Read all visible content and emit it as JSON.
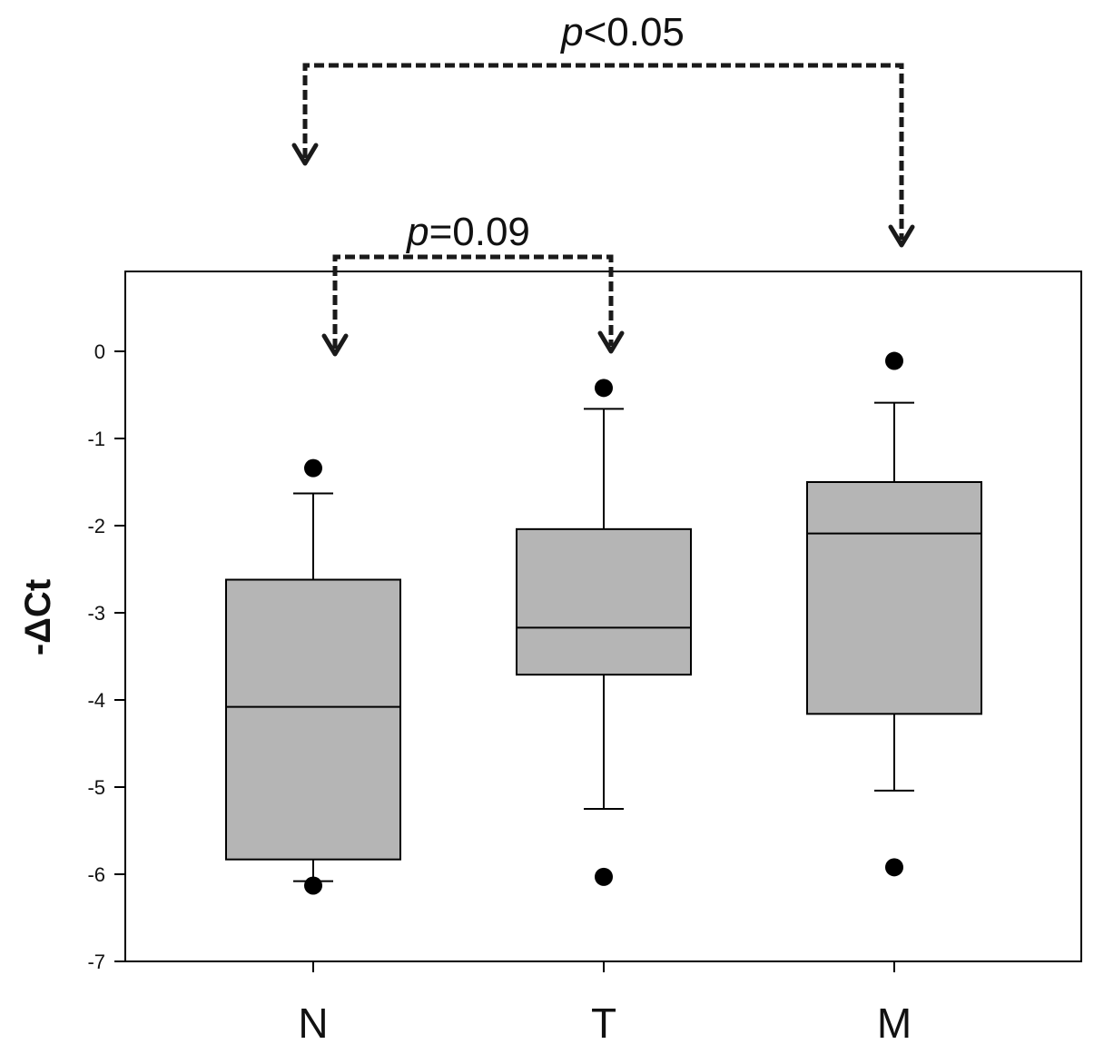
{
  "chart_data": {
    "type": "box",
    "ylabel": "-ΔCt",
    "xlabel": "",
    "ylim": [
      -7,
      0.9
    ],
    "yticks": [
      0,
      -1,
      -2,
      -3,
      -4,
      -5,
      -6,
      -7
    ],
    "ytick_labels": [
      "0",
      "-1",
      "-2",
      "-3",
      "-4",
      "-5",
      "-6",
      "-7"
    ],
    "categories": [
      "N",
      "T",
      "M"
    ],
    "boxes": [
      {
        "category": "N",
        "whisker_low": -6.08,
        "q1": -5.83,
        "median": -4.08,
        "q3": -2.62,
        "whisker_high": -1.63,
        "outliers": [
          -1.34,
          -6.13
        ]
      },
      {
        "category": "T",
        "whisker_low": -5.25,
        "q1": -3.71,
        "median": -3.17,
        "q3": -2.04,
        "whisker_high": -0.66,
        "outliers": [
          -0.42,
          -6.03
        ]
      },
      {
        "category": "M",
        "whisker_low": -5.04,
        "q1": -4.16,
        "median": -2.09,
        "q3": -1.5,
        "whisker_high": -0.59,
        "outliers": [
          -0.11,
          -5.92
        ]
      }
    ],
    "annotations": [
      {
        "from": "N",
        "to": "M",
        "p_symbol": "p",
        "p_rest": "<0.05"
      },
      {
        "from": "N",
        "to": "T",
        "p_symbol": "p",
        "p_rest": "=0.09"
      }
    ],
    "colors": {
      "box_fill": "#b5b5b5",
      "line": "#000000",
      "bracket": "#1a1a1a"
    },
    "grid": false
  }
}
